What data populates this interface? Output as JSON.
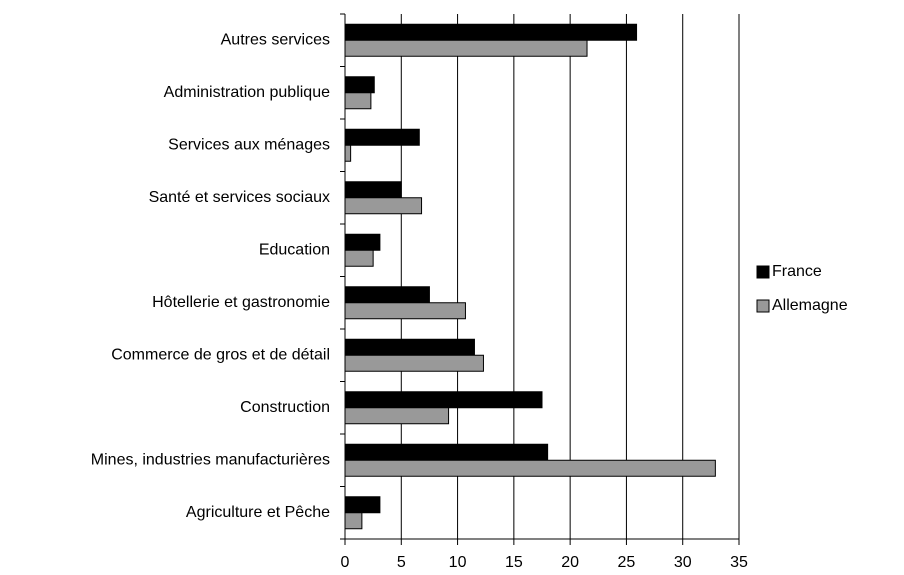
{
  "chart_data": {
    "type": "bar",
    "orientation": "horizontal",
    "categories": [
      "Autres services",
      "Administration publique",
      "Services aux ménages",
      "Santé et services sociaux",
      "Education",
      "Hôtellerie et gastronomie",
      "Commerce de gros et de détail",
      "Construction",
      "Mines, industries manufacturières",
      "Agriculture et Pêche"
    ],
    "series": [
      {
        "name": "France",
        "color": "#000000",
        "values": [
          25.9,
          2.6,
          6.6,
          5.0,
          3.1,
          7.5,
          11.5,
          17.5,
          18.0,
          3.1
        ]
      },
      {
        "name": "Allemagne",
        "color": "#999999",
        "values": [
          21.5,
          2.3,
          0.5,
          6.8,
          2.5,
          10.7,
          12.3,
          9.2,
          32.9,
          1.5
        ]
      }
    ],
    "xlim": [
      0,
      35
    ],
    "xticks": [
      0,
      5,
      10,
      15,
      20,
      25,
      30,
      35
    ],
    "grid": true,
    "legend": "right"
  }
}
